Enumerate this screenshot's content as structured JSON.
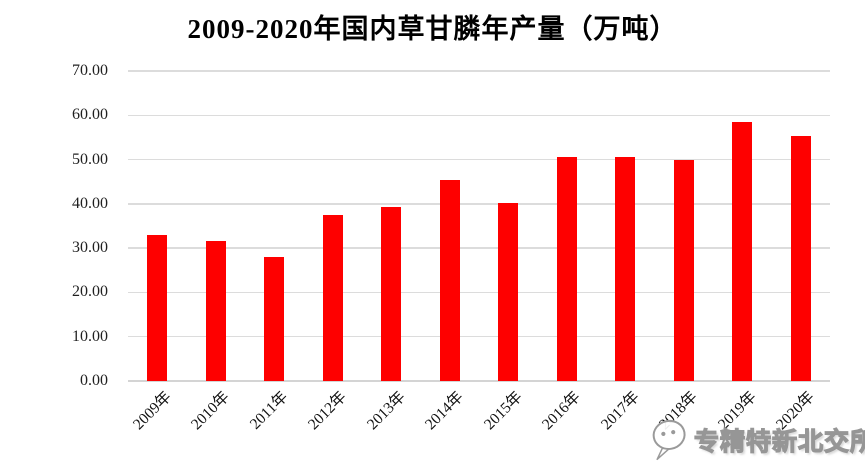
{
  "chart_data": {
    "type": "bar",
    "title": "2009-2020年国内草甘膦年产量（万吨）",
    "categories": [
      "2009年",
      "2010年",
      "2011年",
      "2012年",
      "2013年",
      "2014年",
      "2015年",
      "2016年",
      "2017年",
      "2018年",
      "2019年",
      "2020年"
    ],
    "values": [
      32.9,
      31.6,
      28.0,
      37.4,
      39.3,
      45.3,
      40.2,
      50.5,
      50.5,
      49.9,
      58.4,
      55.4
    ],
    "xlabel": "",
    "ylabel": "",
    "ylim": [
      0,
      70
    ],
    "ytick_step": 10,
    "yticks": [
      "0.00",
      "10.00",
      "20.00",
      "30.00",
      "40.00",
      "50.00",
      "60.00",
      "70.00"
    ],
    "bar_color": "#fe0000",
    "gridline_color": "#dcdcdc",
    "grid": true,
    "legend": "none",
    "x_label_rotation": -45
  },
  "watermark": {
    "icon": "wechat-icon",
    "text": "专精特新北交所"
  }
}
